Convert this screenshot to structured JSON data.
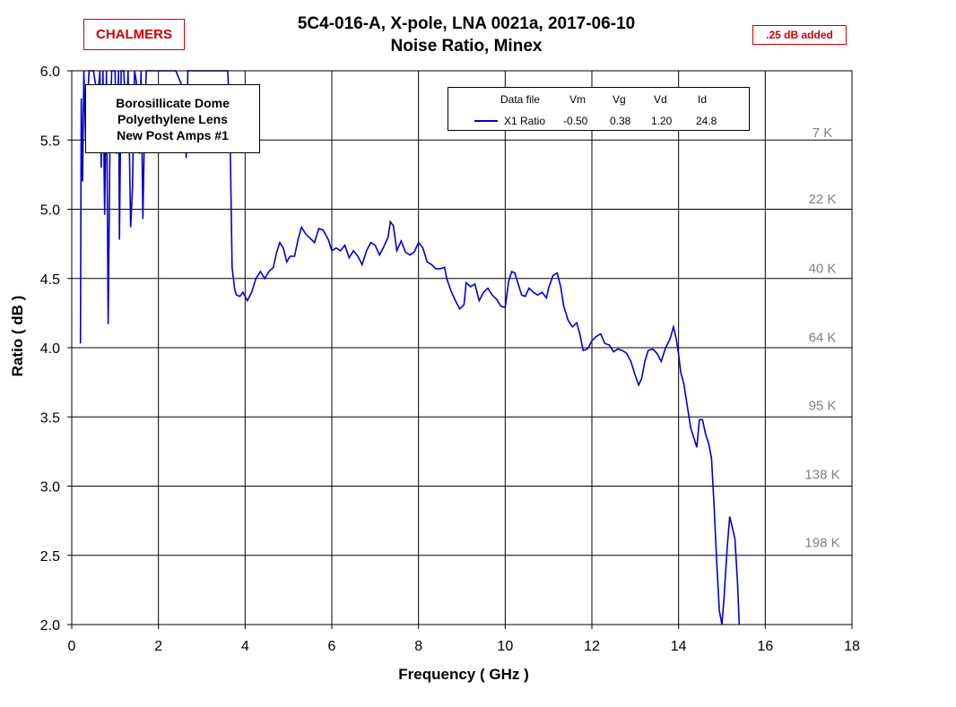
{
  "badges": {
    "left": "CHALMERS",
    "right": ".25 dB added"
  },
  "title_line1": "5C4-016-A,  X-pole,  LNA 0021a,  2017-06-10",
  "title_line2": "Noise Ratio,  Minex",
  "note_lines": [
    "Borosillicate Dome",
    "Polyethylene Lens",
    "New Post Amps #1"
  ],
  "legend": {
    "headers": [
      "Data file",
      "Vm",
      "Vg",
      "Vd",
      "Id"
    ],
    "row": [
      "X1 Ratio",
      "-0.50",
      "0.38",
      "1.20",
      "24.8"
    ]
  },
  "chart_data": {
    "type": "line",
    "title": "5C4-016-A,  X-pole,  LNA 0021a,  2017-06-10 / Noise Ratio,  Minex",
    "xlabel": "Frequency ( GHz )",
    "ylabel": "Ratio ( dB )",
    "xlim": [
      0,
      18
    ],
    "ylim": [
      2.0,
      6.0
    ],
    "xticks": [
      "0",
      "2",
      "4",
      "6",
      "8",
      "10",
      "12",
      "14",
      "16",
      "18"
    ],
    "yticks": [
      "2.0",
      "2.5",
      "3.0",
      "3.5",
      "4.0",
      "4.5",
      "5.0",
      "5.5",
      "6.0"
    ],
    "grid": true,
    "line_color": "#0000cc",
    "temperature_labels": [
      {
        "label": "7 K",
        "y": 5.56
      },
      {
        "label": "22 K",
        "y": 5.08
      },
      {
        "label": "40 K",
        "y": 4.58
      },
      {
        "label": "64 K",
        "y": 4.08
      },
      {
        "label": "95 K",
        "y": 3.59
      },
      {
        "label": "138 K",
        "y": 3.09
      },
      {
        "label": "198 K",
        "y": 2.6
      }
    ],
    "series": [
      {
        "name": "X1 Ratio",
        "points": [
          [
            0.2,
            4.03
          ],
          [
            0.22,
            5.8
          ],
          [
            0.25,
            5.2
          ],
          [
            0.28,
            6.0
          ],
          [
            0.32,
            5.5
          ],
          [
            0.4,
            6.0
          ],
          [
            0.5,
            6.0
          ],
          [
            0.6,
            5.8
          ],
          [
            0.65,
            6.0
          ],
          [
            0.68,
            5.3
          ],
          [
            0.72,
            6.0
          ],
          [
            0.76,
            4.96
          ],
          [
            0.8,
            6.0
          ],
          [
            0.84,
            4.17
          ],
          [
            0.88,
            5.4
          ],
          [
            0.92,
            6.0
          ],
          [
            1.0,
            6.0
          ],
          [
            1.04,
            5.4
          ],
          [
            1.08,
            6.0
          ],
          [
            1.1,
            4.78
          ],
          [
            1.14,
            6.0
          ],
          [
            1.2,
            6.0
          ],
          [
            1.26,
            5.6
          ],
          [
            1.3,
            6.0
          ],
          [
            1.36,
            4.87
          ],
          [
            1.4,
            5.15
          ],
          [
            1.45,
            6.0
          ],
          [
            1.5,
            5.9
          ],
          [
            1.56,
            5.4
          ],
          [
            1.6,
            6.0
          ],
          [
            1.64,
            4.93
          ],
          [
            1.68,
            5.6
          ],
          [
            1.72,
            6.0
          ],
          [
            1.76,
            6.0
          ],
          [
            1.85,
            6.0
          ],
          [
            2.0,
            6.0
          ],
          [
            2.2,
            6.0
          ],
          [
            2.4,
            6.0
          ],
          [
            2.6,
            5.85
          ],
          [
            2.64,
            5.37
          ],
          [
            2.68,
            6.0
          ],
          [
            2.8,
            6.0
          ],
          [
            3.0,
            6.0
          ],
          [
            3.2,
            6.0
          ],
          [
            3.4,
            6.0
          ],
          [
            3.5,
            6.0
          ],
          [
            3.6,
            6.0
          ],
          [
            3.65,
            5.6
          ],
          [
            3.7,
            4.58
          ],
          [
            3.76,
            4.42
          ],
          [
            3.8,
            4.38
          ],
          [
            3.88,
            4.37
          ],
          [
            3.95,
            4.4
          ],
          [
            4.05,
            4.34
          ],
          [
            4.15,
            4.4
          ],
          [
            4.25,
            4.5
          ],
          [
            4.35,
            4.55
          ],
          [
            4.45,
            4.5
          ],
          [
            4.55,
            4.55
          ],
          [
            4.65,
            4.58
          ],
          [
            4.72,
            4.68
          ],
          [
            4.8,
            4.76
          ],
          [
            4.88,
            4.72
          ],
          [
            4.96,
            4.62
          ],
          [
            5.04,
            4.66
          ],
          [
            5.14,
            4.66
          ],
          [
            5.22,
            4.78
          ],
          [
            5.3,
            4.87
          ],
          [
            5.4,
            4.82
          ],
          [
            5.5,
            4.79
          ],
          [
            5.6,
            4.76
          ],
          [
            5.7,
            4.86
          ],
          [
            5.8,
            4.85
          ],
          [
            5.92,
            4.78
          ],
          [
            6.0,
            4.7
          ],
          [
            6.1,
            4.72
          ],
          [
            6.2,
            4.7
          ],
          [
            6.3,
            4.74
          ],
          [
            6.4,
            4.65
          ],
          [
            6.5,
            4.7
          ],
          [
            6.6,
            4.66
          ],
          [
            6.7,
            4.6
          ],
          [
            6.8,
            4.7
          ],
          [
            6.9,
            4.76
          ],
          [
            7.0,
            4.74
          ],
          [
            7.1,
            4.67
          ],
          [
            7.2,
            4.73
          ],
          [
            7.3,
            4.8
          ],
          [
            7.35,
            4.91
          ],
          [
            7.42,
            4.88
          ],
          [
            7.5,
            4.7
          ],
          [
            7.6,
            4.77
          ],
          [
            7.7,
            4.69
          ],
          [
            7.8,
            4.67
          ],
          [
            7.9,
            4.69
          ],
          [
            8.0,
            4.76
          ],
          [
            8.1,
            4.72
          ],
          [
            8.2,
            4.62
          ],
          [
            8.3,
            4.6
          ],
          [
            8.4,
            4.57
          ],
          [
            8.5,
            4.57
          ],
          [
            8.6,
            4.58
          ],
          [
            8.65,
            4.5
          ],
          [
            8.75,
            4.41
          ],
          [
            8.85,
            4.34
          ],
          [
            8.95,
            4.28
          ],
          [
            9.05,
            4.31
          ],
          [
            9.1,
            4.47
          ],
          [
            9.2,
            4.44
          ],
          [
            9.3,
            4.46
          ],
          [
            9.4,
            4.34
          ],
          [
            9.5,
            4.4
          ],
          [
            9.6,
            4.43
          ],
          [
            9.7,
            4.38
          ],
          [
            9.8,
            4.35
          ],
          [
            9.9,
            4.3
          ],
          [
            10.0,
            4.29
          ],
          [
            10.08,
            4.48
          ],
          [
            10.15,
            4.55
          ],
          [
            10.22,
            4.54
          ],
          [
            10.3,
            4.46
          ],
          [
            10.38,
            4.38
          ],
          [
            10.46,
            4.37
          ],
          [
            10.55,
            4.43
          ],
          [
            10.65,
            4.4
          ],
          [
            10.75,
            4.38
          ],
          [
            10.85,
            4.4
          ],
          [
            10.95,
            4.36
          ],
          [
            11.0,
            4.43
          ],
          [
            11.1,
            4.52
          ],
          [
            11.2,
            4.54
          ],
          [
            11.28,
            4.44
          ],
          [
            11.35,
            4.3
          ],
          [
            11.45,
            4.2
          ],
          [
            11.55,
            4.15
          ],
          [
            11.65,
            4.18
          ],
          [
            11.72,
            4.1
          ],
          [
            11.8,
            3.98
          ],
          [
            11.9,
            3.99
          ],
          [
            12.0,
            4.05
          ],
          [
            12.1,
            4.08
          ],
          [
            12.2,
            4.1
          ],
          [
            12.3,
            4.03
          ],
          [
            12.4,
            4.02
          ],
          [
            12.5,
            3.97
          ],
          [
            12.6,
            3.99
          ],
          [
            12.7,
            3.98
          ],
          [
            12.8,
            3.96
          ],
          [
            12.9,
            3.9
          ],
          [
            13.0,
            3.8
          ],
          [
            13.08,
            3.73
          ],
          [
            13.15,
            3.78
          ],
          [
            13.22,
            3.9
          ],
          [
            13.3,
            3.98
          ],
          [
            13.4,
            3.99
          ],
          [
            13.5,
            3.96
          ],
          [
            13.6,
            3.9
          ],
          [
            13.7,
            4.0
          ],
          [
            13.8,
            4.06
          ],
          [
            13.88,
            4.15
          ],
          [
            13.95,
            4.06
          ],
          [
            14.0,
            3.95
          ],
          [
            14.05,
            3.82
          ],
          [
            14.12,
            3.74
          ],
          [
            14.2,
            3.58
          ],
          [
            14.28,
            3.42
          ],
          [
            14.35,
            3.35
          ],
          [
            14.42,
            3.28
          ],
          [
            14.48,
            3.48
          ],
          [
            14.55,
            3.48
          ],
          [
            14.62,
            3.38
          ],
          [
            14.7,
            3.3
          ],
          [
            14.76,
            3.2
          ],
          [
            14.82,
            2.85
          ],
          [
            14.88,
            2.45
          ],
          [
            14.94,
            2.1
          ],
          [
            15.0,
            2.0
          ],
          [
            15.05,
            2.2
          ],
          [
            15.12,
            2.55
          ],
          [
            15.18,
            2.78
          ],
          [
            15.24,
            2.7
          ],
          [
            15.3,
            2.62
          ],
          [
            15.36,
            2.3
          ],
          [
            15.4,
            2.0
          ]
        ]
      }
    ]
  }
}
